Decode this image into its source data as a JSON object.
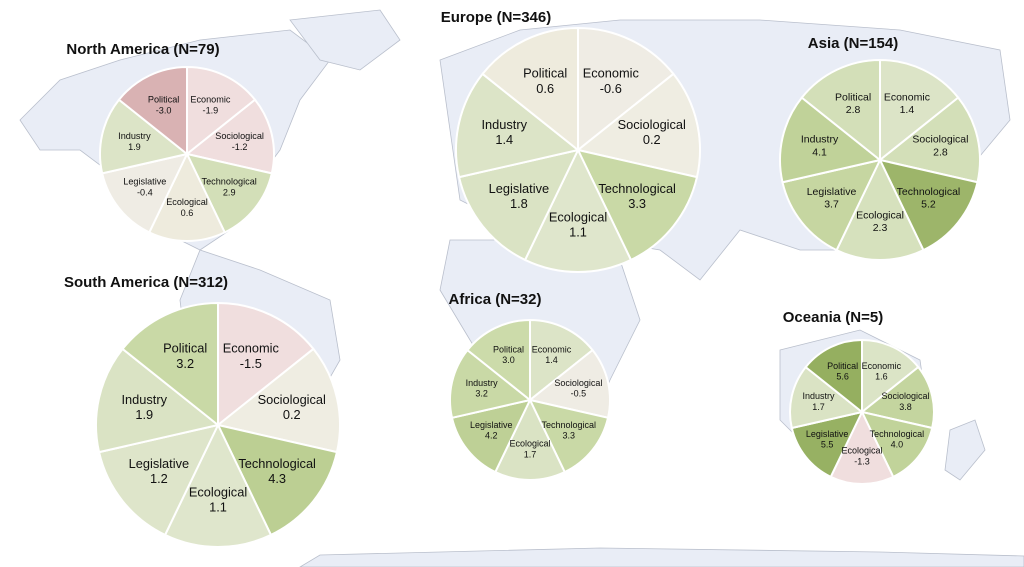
{
  "chart_data": [
    {
      "type": "pie",
      "title": "North America (N=79)",
      "categories": [
        "Economic",
        "Sociological",
        "Technological",
        "Ecological",
        "Legislative",
        "Industry",
        "Political"
      ],
      "values": [
        -1.9,
        -1.2,
        2.9,
        0.6,
        -0.4,
        1.9,
        -3.0
      ],
      "value_labels": [
        "-1.9",
        "-1.2",
        "2.9",
        "0.6",
        "-0.4",
        "1.9",
        "-3.0"
      ],
      "colors": [
        "#f0dede",
        "#f0dede",
        "#d3dfb8",
        "#eeebdd",
        "#efece4",
        "#dce4c7",
        "#d9b2b3"
      ]
    },
    {
      "type": "pie",
      "title": "Europe (N=346)",
      "categories": [
        "Economic",
        "Sociological",
        "Technological",
        "Ecological",
        "Legislative",
        "Industry",
        "Political"
      ],
      "values": [
        -0.6,
        0.2,
        3.3,
        1.1,
        1.8,
        1.4,
        0.6
      ],
      "value_labels": [
        "-0.6",
        "0.2",
        "3.3",
        "1.1",
        "1.8",
        "1.4",
        "0.6"
      ],
      "colors": [
        "#efece4",
        "#efede2",
        "#c9d9a6",
        "#dfe6cc",
        "#dae3c4",
        "#dce4c7",
        "#eeebdd"
      ]
    },
    {
      "type": "pie",
      "title": "Asia (N=154)",
      "categories": [
        "Economic",
        "Sociological",
        "Technological",
        "Ecological",
        "Legislative",
        "Industry",
        "Political"
      ],
      "values": [
        1.4,
        2.8,
        5.2,
        2.3,
        3.7,
        4.1,
        2.8
      ],
      "value_labels": [
        "1.4",
        "2.8",
        "5.2",
        "2.3",
        "3.7",
        "4.1",
        "2.8"
      ],
      "colors": [
        "#dce4c7",
        "#d3dfb8",
        "#9db56a",
        "#d6e1bd",
        "#c6d6a1",
        "#c0d299",
        "#d3dfb8"
      ]
    },
    {
      "type": "pie",
      "title": "South America (N=312)",
      "categories": [
        "Economic",
        "Sociological",
        "Technological",
        "Ecological",
        "Legislative",
        "Industry",
        "Political"
      ],
      "values": [
        -1.5,
        0.2,
        4.3,
        1.1,
        1.2,
        1.9,
        3.2
      ],
      "value_labels": [
        "-1.5",
        "0.2",
        "4.3",
        "1.1",
        "1.2",
        "1.9",
        "3.2"
      ],
      "colors": [
        "#f0dede",
        "#efede2",
        "#bccf93",
        "#dfe6cc",
        "#dee5ca",
        "#dae3c4",
        "#c9d9a6"
      ]
    },
    {
      "type": "pie",
      "title": "Africa (N=32)",
      "categories": [
        "Economic",
        "Sociological",
        "Technological",
        "Ecological",
        "Legislative",
        "Industry",
        "Political"
      ],
      "values": [
        1.4,
        -0.5,
        3.3,
        1.7,
        4.2,
        3.2,
        3.0
      ],
      "value_labels": [
        "1.4",
        "-0.5",
        "3.3",
        "1.7",
        "4.2",
        "3.2",
        "3.0"
      ],
      "colors": [
        "#dce4c7",
        "#efece4",
        "#c9d9a6",
        "#dae3c4",
        "#bed096",
        "#c9d9a6",
        "#ccdbaa"
      ]
    },
    {
      "type": "pie",
      "title": "Oceania (N=5)",
      "categories": [
        "Economic",
        "Sociological",
        "Technological",
        "Ecological",
        "Legislative",
        "Industry",
        "Political"
      ],
      "values": [
        1.6,
        3.8,
        4.0,
        -1.3,
        5.5,
        1.7,
        5.6
      ],
      "value_labels": [
        "1.6",
        "3.8",
        "4.0",
        "-1.3",
        "5.5",
        "1.7",
        "5.6"
      ],
      "colors": [
        "#dbe4c6",
        "#c4d59f",
        "#c1d39a",
        "#f0dede",
        "#97b163",
        "#dae3c4",
        "#95af60"
      ]
    }
  ]
}
